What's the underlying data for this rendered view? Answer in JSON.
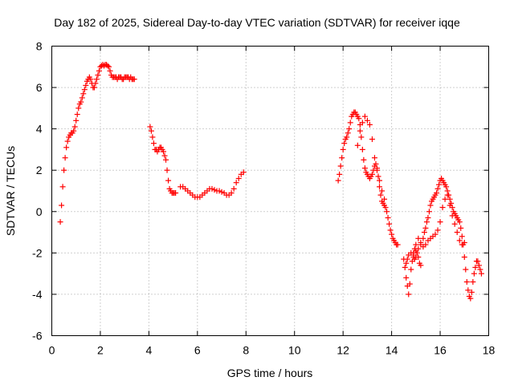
{
  "chart_data": {
    "type": "scatter",
    "title": "Day 182 of 2025, Sidereal Day-to-day VTEC variation (SDTVAR) for receiver iqqe",
    "xlabel": "GPS time / hours",
    "ylabel": "SDTVAR / TECUs",
    "xlim": [
      0,
      18
    ],
    "ylim": [
      -6,
      8
    ],
    "xticks": [
      "0",
      "2",
      "4",
      "6",
      "8",
      "10",
      "12",
      "14",
      "16",
      "18"
    ],
    "yticks": [
      "-6",
      "-4",
      "-2",
      "0",
      "2",
      "4",
      "6",
      "8"
    ],
    "grid": true,
    "marker": "+",
    "color": "#ff0000",
    "series": [
      {
        "name": "SDTVAR",
        "x": [
          0.35,
          0.4,
          0.45,
          0.5,
          0.55,
          0.6,
          0.65,
          0.7,
          0.75,
          0.8,
          0.85,
          0.9,
          0.95,
          1.0,
          1.05,
          1.1,
          1.15,
          1.2,
          1.25,
          1.3,
          1.35,
          1.4,
          1.45,
          1.5,
          1.55,
          1.6,
          1.65,
          1.7,
          1.75,
          1.8,
          1.85,
          1.9,
          1.95,
          2.0,
          2.05,
          2.1,
          2.15,
          2.2,
          2.25,
          2.3,
          2.35,
          2.4,
          2.45,
          2.5,
          2.55,
          2.6,
          2.65,
          2.7,
          2.75,
          2.8,
          2.85,
          2.9,
          2.95,
          3.0,
          3.05,
          3.1,
          3.15,
          3.2,
          3.25,
          3.3,
          3.35,
          3.4,
          4.05,
          4.1,
          4.15,
          4.2,
          4.25,
          4.3,
          4.35,
          4.4,
          4.45,
          4.5,
          4.55,
          4.6,
          4.65,
          4.7,
          4.75,
          4.8,
          4.85,
          4.9,
          4.95,
          5.0,
          5.05,
          5.1,
          5.3,
          5.4,
          5.5,
          5.6,
          5.7,
          5.8,
          5.9,
          6.0,
          6.1,
          6.2,
          6.3,
          6.4,
          6.5,
          6.6,
          6.7,
          6.8,
          6.9,
          7.0,
          7.1,
          7.2,
          7.3,
          7.4,
          7.5,
          7.6,
          7.7,
          7.8,
          7.9,
          11.8,
          11.85,
          11.9,
          11.95,
          12.0,
          12.05,
          12.1,
          12.15,
          12.2,
          12.25,
          12.3,
          12.35,
          12.4,
          12.45,
          12.5,
          12.55,
          12.6,
          12.65,
          12.7,
          12.75,
          12.8,
          12.85,
          12.9,
          12.95,
          13.0,
          13.05,
          13.1,
          13.15,
          13.2,
          13.25,
          13.3,
          13.35,
          13.4,
          13.45,
          13.5,
          13.55,
          13.6,
          13.65,
          13.7,
          13.75,
          13.8,
          13.85,
          13.9,
          13.95,
          14.0,
          14.05,
          14.1,
          14.15,
          14.2,
          14.25,
          12.6,
          12.7,
          12.8,
          12.9,
          13.0,
          13.1,
          13.2,
          13.3,
          13.4,
          13.5,
          13.6,
          13.7,
          14.5,
          14.55,
          14.6,
          14.65,
          14.7,
          14.75,
          14.8,
          14.85,
          14.9,
          14.95,
          15.0,
          15.05,
          15.1,
          15.15,
          15.2,
          14.6,
          14.65,
          14.7,
          14.8,
          14.9,
          15.0,
          15.1,
          15.2,
          15.3,
          15.35,
          15.4,
          15.45,
          15.5,
          15.55,
          15.6,
          15.65,
          15.7,
          15.75,
          15.8,
          15.85,
          15.9,
          15.95,
          16.0,
          16.05,
          16.1,
          16.15,
          16.2,
          16.25,
          16.3,
          16.35,
          16.4,
          16.45,
          16.5,
          16.55,
          16.6,
          16.65,
          16.7,
          16.75,
          16.8,
          16.85,
          16.9,
          16.95,
          17.0,
          17.05,
          17.1,
          17.15,
          17.2,
          17.25,
          17.3,
          17.35,
          17.4,
          17.45,
          17.5,
          17.55,
          17.6,
          17.65,
          17.7,
          14.9,
          14.95,
          15.0,
          15.1,
          15.2,
          15.3,
          15.4,
          15.5,
          15.6,
          15.7,
          15.8,
          15.9,
          16.0,
          16.1,
          16.2,
          16.3,
          16.4,
          16.5,
          16.6,
          16.7,
          16.8,
          16.9,
          17.0
        ],
        "y": [
          -0.5,
          0.3,
          1.2,
          2.0,
          2.6,
          3.1,
          3.4,
          3.6,
          3.7,
          3.8,
          3.8,
          3.9,
          4.1,
          4.4,
          4.7,
          5.0,
          5.2,
          5.3,
          5.5,
          5.7,
          5.9,
          6.1,
          6.3,
          6.4,
          6.5,
          6.4,
          6.2,
          6.0,
          6.0,
          6.2,
          6.4,
          6.6,
          6.8,
          7.0,
          7.05,
          7.1,
          7.05,
          7.1,
          7.1,
          7.05,
          7.0,
          6.8,
          6.6,
          6.5,
          6.5,
          6.5,
          6.5,
          6.4,
          6.5,
          6.5,
          6.5,
          6.4,
          6.4,
          6.5,
          6.5,
          6.5,
          6.5,
          6.4,
          6.5,
          6.4,
          6.4,
          6.4,
          4.1,
          3.9,
          3.6,
          3.3,
          3.0,
          3.0,
          2.9,
          3.0,
          3.1,
          3.1,
          3.0,
          2.9,
          2.7,
          2.5,
          2.0,
          1.5,
          1.1,
          1.0,
          0.9,
          0.9,
          0.9,
          0.9,
          1.2,
          1.2,
          1.1,
          1.0,
          0.9,
          0.8,
          0.7,
          0.7,
          0.7,
          0.8,
          0.9,
          1.0,
          1.1,
          1.1,
          1.05,
          1.0,
          1.0,
          0.95,
          0.9,
          0.8,
          0.8,
          0.9,
          1.1,
          1.4,
          1.6,
          1.8,
          1.9,
          1.5,
          1.8,
          2.2,
          2.6,
          3.0,
          3.3,
          3.5,
          3.6,
          3.8,
          4.0,
          4.3,
          4.6,
          4.7,
          4.8,
          4.8,
          4.7,
          4.6,
          4.5,
          4.2,
          3.6,
          3.0,
          2.5,
          2.1,
          1.9,
          1.8,
          1.7,
          1.6,
          1.7,
          1.8,
          2.0,
          2.2,
          2.3,
          2.1,
          1.7,
          1.2,
          0.8,
          0.5,
          0.4,
          0.3,
          0.2,
          0.0,
          -0.3,
          -0.6,
          -0.9,
          -1.1,
          -1.3,
          -1.4,
          -1.5,
          -1.6,
          -1.6,
          3.2,
          3.9,
          4.3,
          4.6,
          4.4,
          4.2,
          3.5,
          2.6,
          2.0,
          1.5,
          1.0,
          0.6,
          -2.3,
          -2.7,
          -3.2,
          -3.6,
          -4.0,
          -3.5,
          -2.8,
          -2.4,
          -2.2,
          -2.3,
          -2.2,
          -2.0,
          -2.2,
          -2.5,
          -2.6,
          -2.5,
          -2.3,
          -2.1,
          -2.0,
          -2.0,
          -1.9,
          -1.8,
          -1.6,
          -1.3,
          -1.0,
          -0.8,
          -0.5,
          -0.3,
          0.0,
          0.3,
          0.5,
          0.6,
          0.7,
          0.8,
          0.9,
          1.1,
          1.3,
          1.5,
          1.6,
          1.5,
          1.4,
          1.3,
          1.2,
          1.0,
          0.8,
          0.6,
          0.4,
          0.2,
          0.0,
          -0.1,
          -0.2,
          -0.3,
          -0.4,
          -0.5,
          -0.8,
          -1.2,
          -1.6,
          -2.2,
          -2.8,
          -3.4,
          -3.8,
          -4.1,
          -4.2,
          -3.9,
          -3.4,
          -3.0,
          -2.7,
          -2.4,
          -2.4,
          -2.6,
          -2.8,
          -3.0,
          -2.1,
          -1.8,
          -1.6,
          -1.3,
          -1.5,
          -1.7,
          -1.6,
          -1.4,
          -1.3,
          -1.2,
          -1.1,
          -0.9,
          -0.5,
          0.2,
          0.6,
          0.8,
          0.3,
          -0.2,
          -0.6,
          -1.0,
          -1.4,
          -1.6,
          -1.5
        ]
      }
    ]
  }
}
